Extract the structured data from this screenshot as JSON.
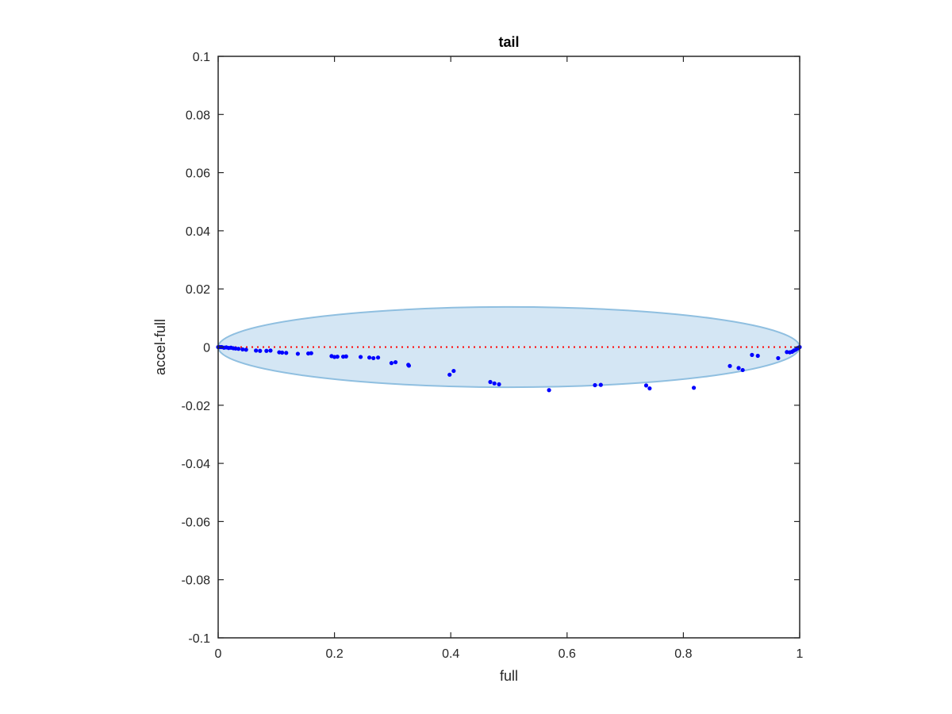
{
  "chart_data": {
    "type": "scatter",
    "title": "tail",
    "xlabel": "full",
    "ylabel": "accel-full",
    "xlim": [
      0,
      1
    ],
    "ylim": [
      -0.1,
      0.1
    ],
    "xticks": [
      0,
      0.2,
      0.4,
      0.6,
      0.8,
      1
    ],
    "xtick_labels": [
      "0",
      "0.2",
      "0.4",
      "0.6",
      "0.8",
      "1"
    ],
    "yticks": [
      0.1,
      0.08,
      0.06,
      0.04,
      0.02,
      0,
      -0.02,
      -0.04,
      -0.06,
      -0.08,
      -0.1
    ],
    "ytick_labels": [
      "0.1",
      "0.08",
      "0.06",
      "0.04",
      "0.02",
      "0",
      "-0.02",
      "-0.04",
      "-0.06",
      "-0.08",
      "-0.1"
    ],
    "grid": false,
    "colors": {
      "points": "#0000ff",
      "ellipse_fill": "#d4e6f4",
      "ellipse_stroke": "#8fbfe0",
      "reference_line": "#ff0000",
      "axes": "#262626"
    },
    "ellipse": {
      "center": [
        0.5,
        0
      ],
      "semi_axis_x": 0.5,
      "semi_axis_y": 0.0138
    },
    "reference_line": {
      "y": 0,
      "style": "dotted"
    },
    "points": [
      [
        0.0,
        0.0
      ],
      [
        0.003,
        0.0
      ],
      [
        0.006,
        0.0
      ],
      [
        0.01,
        -0.0002
      ],
      [
        0.014,
        -0.0001
      ],
      [
        0.018,
        -0.0003
      ],
      [
        0.022,
        -0.0002
      ],
      [
        0.026,
        -0.0004
      ],
      [
        0.03,
        -0.0005
      ],
      [
        0.035,
        -0.0006
      ],
      [
        0.042,
        -0.0008
      ],
      [
        0.048,
        -0.0009
      ],
      [
        0.065,
        -0.0012
      ],
      [
        0.072,
        -0.0013
      ],
      [
        0.083,
        -0.0013
      ],
      [
        0.09,
        -0.0012
      ],
      [
        0.105,
        -0.0018
      ],
      [
        0.11,
        -0.0019
      ],
      [
        0.117,
        -0.002
      ],
      [
        0.137,
        -0.0023
      ],
      [
        0.155,
        -0.0022
      ],
      [
        0.16,
        -0.0021
      ],
      [
        0.195,
        -0.0031
      ],
      [
        0.2,
        -0.0034
      ],
      [
        0.205,
        -0.0033
      ],
      [
        0.215,
        -0.0033
      ],
      [
        0.22,
        -0.0032
      ],
      [
        0.245,
        -0.0034
      ],
      [
        0.26,
        -0.0036
      ],
      [
        0.267,
        -0.0038
      ],
      [
        0.275,
        -0.0036
      ],
      [
        0.298,
        -0.0055
      ],
      [
        0.305,
        -0.0052
      ],
      [
        0.327,
        -0.0061
      ],
      [
        0.328,
        -0.0064
      ],
      [
        0.398,
        -0.0095
      ],
      [
        0.405,
        -0.0082
      ],
      [
        0.468,
        -0.012
      ],
      [
        0.475,
        -0.0125
      ],
      [
        0.483,
        -0.0128
      ],
      [
        0.569,
        -0.0148
      ],
      [
        0.648,
        -0.0131
      ],
      [
        0.658,
        -0.013
      ],
      [
        0.736,
        -0.0132
      ],
      [
        0.742,
        -0.0142
      ],
      [
        0.818,
        -0.014
      ],
      [
        0.88,
        -0.0065
      ],
      [
        0.895,
        -0.0072
      ],
      [
        0.902,
        -0.0079
      ],
      [
        0.918,
        -0.0027
      ],
      [
        0.928,
        -0.003
      ],
      [
        0.963,
        -0.0038
      ],
      [
        0.978,
        -0.0017
      ],
      [
        0.983,
        -0.0018
      ],
      [
        0.987,
        -0.0016
      ],
      [
        0.99,
        -0.0012
      ],
      [
        0.993,
        -0.0009
      ],
      [
        0.996,
        -0.0005
      ],
      [
        0.998,
        -0.0002
      ],
      [
        1.0,
        0.0
      ]
    ]
  }
}
